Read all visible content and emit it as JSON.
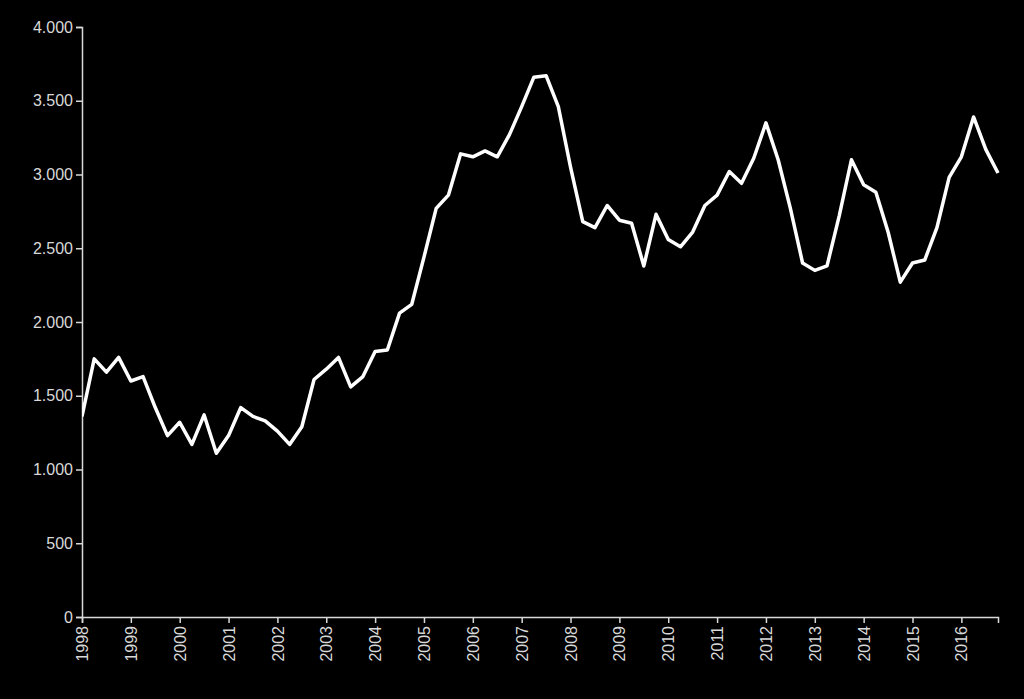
{
  "chart_data": {
    "type": "line",
    "categories": [
      "1998",
      null,
      null,
      null,
      "1999",
      null,
      null,
      null,
      "2000",
      null,
      null,
      null,
      "2001",
      null,
      null,
      null,
      "2002",
      null,
      null,
      null,
      "2003",
      null,
      null,
      null,
      "2004",
      null,
      null,
      null,
      "2005",
      null,
      null,
      null,
      "2006",
      null,
      null,
      null,
      "2007",
      null,
      null,
      null,
      "2008",
      null,
      null,
      null,
      "2009",
      null,
      null,
      null,
      "2010",
      null,
      null,
      null,
      "2011",
      null,
      null,
      null,
      "2012",
      null,
      null,
      null,
      "2013",
      null,
      null,
      null,
      "2014",
      null,
      null,
      null,
      "2015",
      null,
      null,
      null,
      "2016",
      null,
      null,
      null
    ],
    "values": [
      1360,
      1750,
      1660,
      1760,
      1600,
      1630,
      1420,
      1230,
      1320,
      1170,
      1370,
      1110,
      1230,
      1420,
      1360,
      1330,
      1260,
      1170,
      1290,
      1610,
      1680,
      1760,
      1560,
      1630,
      1800,
      1810,
      2060,
      2120,
      2440,
      2770,
      2860,
      3140,
      3120,
      3160,
      3120,
      3270,
      3460,
      3660,
      3670,
      3460,
      3050,
      2680,
      2640,
      2790,
      2690,
      2670,
      2380,
      2730,
      2560,
      2510,
      2610,
      2790,
      2860,
      3020,
      2940,
      3110,
      3350,
      3100,
      2770,
      2400,
      2350,
      2380,
      2720,
      3100,
      2930,
      2880,
      2610,
      2270,
      2400,
      2420,
      2640,
      2980,
      3120,
      3390,
      3170,
      3010
    ],
    "color": "#ffffff",
    "ylim": [
      0,
      4000
    ],
    "yticks": [
      0,
      500,
      {
        "value": 1000,
        "label": "1.000"
      },
      {
        "value": 1500,
        "label": "1.500"
      },
      {
        "value": 2000,
        "label": "2.000"
      },
      {
        "value": 2500,
        "label": "2.500"
      },
      {
        "value": 3000,
        "label": "3.000"
      },
      {
        "value": 3500,
        "label": "3.500"
      },
      {
        "value": 4000,
        "label": "4.000"
      }
    ],
    "grid": false
  }
}
